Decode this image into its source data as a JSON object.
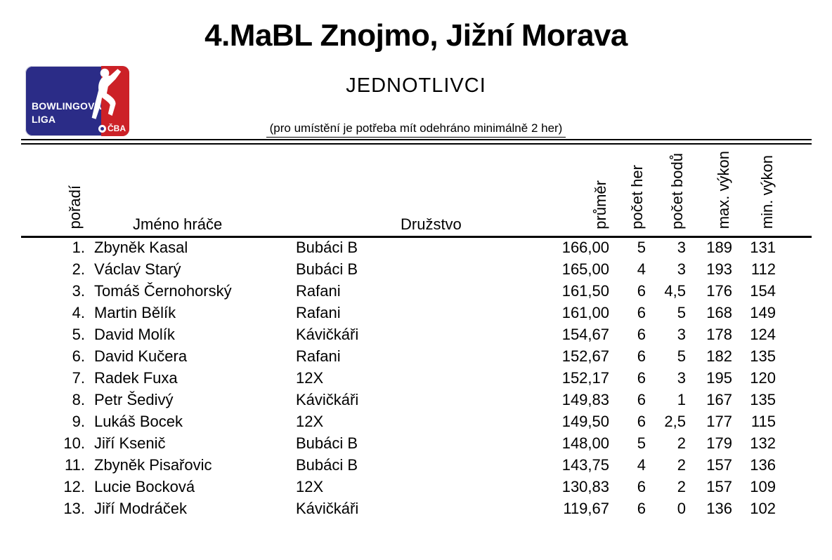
{
  "header": {
    "title": "4.MaBL Znojmo, Jižní Morava",
    "subtitle": "JEDNOTLIVCI",
    "note": "(pro umístění je potřeba mít odehráno minimálně 2 her)"
  },
  "logo": {
    "line1": "BOWLINGOVÁ",
    "line2": "LIGA",
    "cba": "ČBA",
    "icon": "bowler-silhouette-icon",
    "ball_icon": "cba-ball-icon",
    "colors": {
      "blue": "#2b2c87",
      "red": "#cc2127",
      "text": "#ffffff"
    }
  },
  "table": {
    "columns": [
      "pořadí",
      "Jméno hráče",
      "Družstvo",
      "průměr",
      "počet her",
      "počet bodů",
      "max. výkon",
      "min. výkon"
    ],
    "rows": [
      {
        "rank": "1.",
        "name": "Zbyněk Kasal",
        "team": "Bubáci B",
        "avg": "166,00",
        "games": "5",
        "points": "3",
        "max": "189",
        "min": "131"
      },
      {
        "rank": "2.",
        "name": "Václav Starý",
        "team": "Bubáci B",
        "avg": "165,00",
        "games": "4",
        "points": "3",
        "max": "193",
        "min": "112"
      },
      {
        "rank": "3.",
        "name": "Tomáš Černohorský",
        "team": "Rafani",
        "avg": "161,50",
        "games": "6",
        "points": "4,5",
        "max": "176",
        "min": "154"
      },
      {
        "rank": "4.",
        "name": "Martin Bělík",
        "team": "Rafani",
        "avg": "161,00",
        "games": "6",
        "points": "5",
        "max": "168",
        "min": "149"
      },
      {
        "rank": "5.",
        "name": "David Molík",
        "team": "Kávičkáři",
        "avg": "154,67",
        "games": "6",
        "points": "3",
        "max": "178",
        "min": "124"
      },
      {
        "rank": "6.",
        "name": "David Kučera",
        "team": "Rafani",
        "avg": "152,67",
        "games": "6",
        "points": "5",
        "max": "182",
        "min": "135"
      },
      {
        "rank": "7.",
        "name": "Radek Fuxa",
        "team": "12X",
        "avg": "152,17",
        "games": "6",
        "points": "3",
        "max": "195",
        "min": "120"
      },
      {
        "rank": "8.",
        "name": "Petr Šedivý",
        "team": "Kávičkáři",
        "avg": "149,83",
        "games": "6",
        "points": "1",
        "max": "167",
        "min": "135"
      },
      {
        "rank": "9.",
        "name": "Lukáš Bocek",
        "team": "12X",
        "avg": "149,50",
        "games": "6",
        "points": "2,5",
        "max": "177",
        "min": "115"
      },
      {
        "rank": "10.",
        "name": "Jiří Ksenič",
        "team": "Bubáci B",
        "avg": "148,00",
        "games": "5",
        "points": "2",
        "max": "179",
        "min": "132"
      },
      {
        "rank": "11.",
        "name": "Zbyněk Pisařovic",
        "team": "Bubáci B",
        "avg": "143,75",
        "games": "4",
        "points": "2",
        "max": "157",
        "min": "136"
      },
      {
        "rank": "12.",
        "name": "Lucie Bocková",
        "team": "12X",
        "avg": "130,83",
        "games": "6",
        "points": "2",
        "max": "157",
        "min": "109"
      },
      {
        "rank": "13.",
        "name": "Jiří Modráček",
        "team": "Kávičkáři",
        "avg": "119,67",
        "games": "6",
        "points": "0",
        "max": "136",
        "min": "102"
      }
    ]
  }
}
